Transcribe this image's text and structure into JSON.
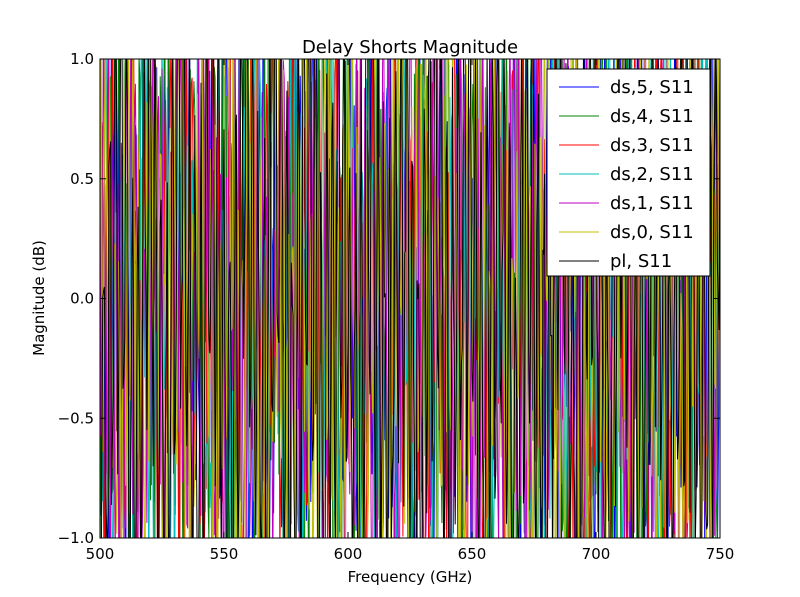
{
  "chart_data": {
    "type": "line",
    "title": "Delay Shorts Magnitude",
    "xlabel": "Frequency (GHz)",
    "ylabel": "Magnitude (dB)",
    "xlim": [
      500,
      750
    ],
    "ylim": [
      -1.0,
      1.0
    ],
    "xticks": [
      "500",
      "550",
      "600",
      "650",
      "700",
      "750"
    ],
    "yticks": [
      "1.0",
      "0.5",
      "0.0",
      "−0.5",
      "−1.0"
    ],
    "grid": false,
    "legend_position": "top-right",
    "series": [
      {
        "name": "ds,5, S11",
        "color": "#0000ff",
        "seed": 5,
        "amp": 1.25
      },
      {
        "name": "ds,4, S11",
        "color": "#008000",
        "seed": 4,
        "amp": 1.35
      },
      {
        "name": "ds,3, S11",
        "color": "#ff0000",
        "seed": 3,
        "amp": 1.3
      },
      {
        "name": "ds,2, S11",
        "color": "#00bfbf",
        "seed": 2,
        "amp": 1.2
      },
      {
        "name": "ds,1, S11",
        "color": "#bf00bf",
        "seed": 1,
        "amp": 1.3
      },
      {
        "name": "ds,0, S11",
        "color": "#bfbf00",
        "seed": 7,
        "amp": 1.35
      },
      {
        "name": "pl, S11",
        "color": "#000000",
        "seed": 9,
        "amp": 1.5
      }
    ]
  }
}
